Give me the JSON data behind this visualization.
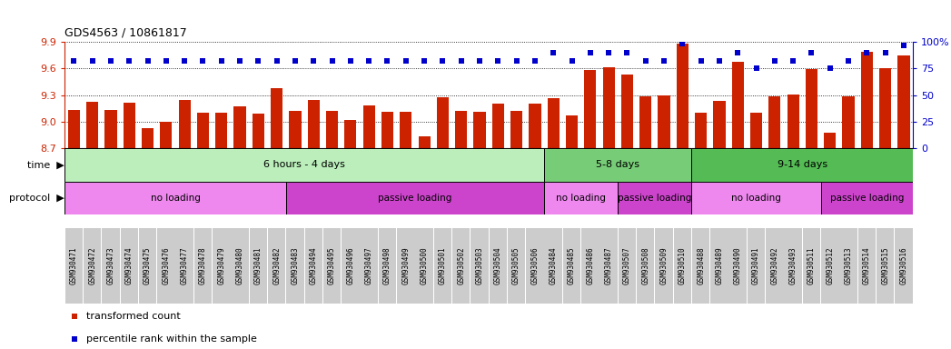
{
  "title": "GDS4563 / 10861817",
  "samples": [
    "GSM930471",
    "GSM930472",
    "GSM930473",
    "GSM930474",
    "GSM930475",
    "GSM930476",
    "GSM930477",
    "GSM930478",
    "GSM930479",
    "GSM930480",
    "GSM930481",
    "GSM930482",
    "GSM930483",
    "GSM930494",
    "GSM930495",
    "GSM930496",
    "GSM930497",
    "GSM930498",
    "GSM930499",
    "GSM930500",
    "GSM930501",
    "GSM930502",
    "GSM930503",
    "GSM930504",
    "GSM930505",
    "GSM930506",
    "GSM930484",
    "GSM930485",
    "GSM930486",
    "GSM930487",
    "GSM930507",
    "GSM930508",
    "GSM930509",
    "GSM930510",
    "GSM930488",
    "GSM930489",
    "GSM930490",
    "GSM930491",
    "GSM930492",
    "GSM930493",
    "GSM930511",
    "GSM930512",
    "GSM930513",
    "GSM930514",
    "GSM930515",
    "GSM930516"
  ],
  "bar_values": [
    9.13,
    9.22,
    9.13,
    9.21,
    8.93,
    9.0,
    9.24,
    9.1,
    9.1,
    9.17,
    9.09,
    9.38,
    9.12,
    9.24,
    9.12,
    9.02,
    9.18,
    9.11,
    9.11,
    8.84,
    9.28,
    9.12,
    9.11,
    9.2,
    9.12,
    9.2,
    9.27,
    9.07,
    9.58,
    9.61,
    9.53,
    9.29,
    9.3,
    9.88,
    9.1,
    9.23,
    9.68,
    9.1,
    9.29,
    9.31,
    9.59,
    8.88,
    9.29,
    9.79,
    9.6,
    9.75
  ],
  "percentile_values": [
    82,
    82,
    82,
    82,
    82,
    82,
    82,
    82,
    82,
    82,
    82,
    82,
    82,
    82,
    82,
    82,
    82,
    82,
    82,
    82,
    82,
    82,
    82,
    82,
    82,
    82,
    90,
    82,
    90,
    90,
    90,
    82,
    82,
    98,
    82,
    82,
    90,
    75,
    82,
    82,
    90,
    75,
    82,
    90,
    90,
    97
  ],
  "ylim_left": [
    8.7,
    9.9
  ],
  "ylim_right": [
    0,
    100
  ],
  "yticks_left": [
    8.7,
    9.0,
    9.3,
    9.6,
    9.9
  ],
  "yticks_right": [
    0,
    25,
    50,
    75,
    100
  ],
  "bar_color": "#cc2200",
  "percentile_color": "#0000cc",
  "background_color": "#ffffff",
  "tick_label_bg": "#cccccc",
  "time_groups": [
    {
      "label": "6 hours - 4 days",
      "start": 0,
      "end": 26,
      "color": "#bbeebb"
    },
    {
      "label": "5-8 days",
      "start": 26,
      "end": 34,
      "color": "#77cc77"
    },
    {
      "label": "9-14 days",
      "start": 34,
      "end": 46,
      "color": "#55bb55"
    }
  ],
  "protocol_groups": [
    {
      "label": "no loading",
      "start": 0,
      "end": 12,
      "color": "#ee88ee"
    },
    {
      "label": "passive loading",
      "start": 12,
      "end": 26,
      "color": "#cc44cc"
    },
    {
      "label": "no loading",
      "start": 26,
      "end": 30,
      "color": "#ee88ee"
    },
    {
      "label": "passive loading",
      "start": 30,
      "end": 34,
      "color": "#cc44cc"
    },
    {
      "label": "no loading",
      "start": 34,
      "end": 41,
      "color": "#ee88ee"
    },
    {
      "label": "passive loading",
      "start": 41,
      "end": 46,
      "color": "#cc44cc"
    }
  ],
  "legend_items": [
    {
      "label": "transformed count",
      "color": "#cc2200"
    },
    {
      "label": "percentile rank within the sample",
      "color": "#0000cc"
    }
  ]
}
